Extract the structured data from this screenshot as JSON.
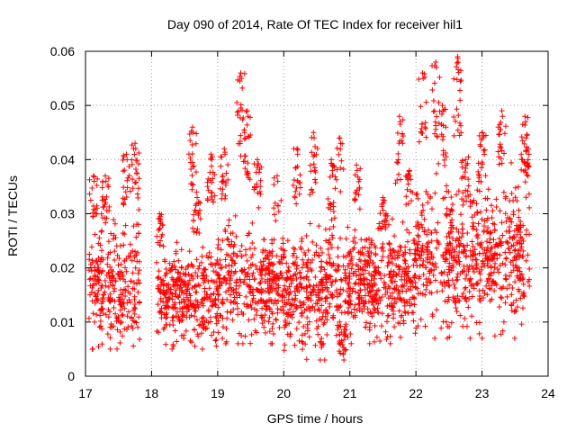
{
  "chart_data": {
    "type": "scatter",
    "title": "Day 090 of 2014, Rate Of TEC Index for receiver hil1",
    "xlabel": "GPS time / hours",
    "ylabel": "ROTI / TECUs",
    "xlim": [
      17,
      24
    ],
    "ylim": [
      0,
      0.06
    ],
    "xticks": [
      "17",
      "18",
      "19",
      "20",
      "21",
      "22",
      "23",
      "24"
    ],
    "yticks": [
      "0",
      "0.01",
      "0.02",
      "0.03",
      "0.04",
      "0.05",
      "0.06"
    ],
    "grid": true,
    "marker": "+",
    "color": "#ff0000",
    "series": [
      {
        "name": "hil1",
        "segments": [
          {
            "x_start": 17.05,
            "x_end": 17.82,
            "base": 0.017,
            "spread": 0.011,
            "min": 0.005,
            "max": 0.043,
            "peaks": [
              [
                17.12,
                0.037
              ],
              [
                17.3,
                0.037
              ],
              [
                17.62,
                0.041
              ],
              [
                17.75,
                0.043
              ]
            ]
          },
          {
            "x_start": 18.07,
            "x_end": 19.0,
            "base": 0.015,
            "spread": 0.008,
            "min": 0.005,
            "max": 0.046,
            "peaks": [
              [
                18.12,
                0.03
              ],
              [
                18.62,
                0.046
              ],
              [
                18.68,
                0.034
              ],
              [
                18.9,
                0.041
              ]
            ]
          },
          {
            "x_start": 19.0,
            "x_end": 20.0,
            "base": 0.017,
            "spread": 0.01,
            "min": 0.006,
            "max": 0.056,
            "peaks": [
              [
                19.1,
                0.042
              ],
              [
                19.35,
                0.056
              ],
              [
                19.45,
                0.049
              ],
              [
                19.6,
                0.04
              ],
              [
                19.9,
                0.037
              ]
            ]
          },
          {
            "x_start": 20.0,
            "x_end": 21.0,
            "base": 0.016,
            "spread": 0.011,
            "min": 0.003,
            "max": 0.045,
            "peaks": [
              [
                20.2,
                0.042
              ],
              [
                20.45,
                0.045
              ],
              [
                20.72,
                0.04
              ],
              [
                20.85,
                0.044
              ],
              [
                20.9,
                0.004
              ]
            ]
          },
          {
            "x_start": 21.0,
            "x_end": 22.0,
            "base": 0.017,
            "spread": 0.01,
            "min": 0.006,
            "max": 0.048,
            "peaks": [
              [
                21.1,
                0.039
              ],
              [
                21.5,
                0.033
              ],
              [
                21.75,
                0.048
              ],
              [
                21.9,
                0.038
              ]
            ]
          },
          {
            "x_start": 22.0,
            "x_end": 22.9,
            "base": 0.022,
            "spread": 0.013,
            "min": 0.007,
            "max": 0.059,
            "peaks": [
              [
                22.1,
                0.056
              ],
              [
                22.3,
                0.058
              ],
              [
                22.4,
                0.05
              ],
              [
                22.63,
                0.059
              ],
              [
                22.75,
                0.04
              ]
            ]
          },
          {
            "x_start": 22.9,
            "x_end": 23.72,
            "base": 0.022,
            "spread": 0.012,
            "min": 0.007,
            "max": 0.05,
            "peaks": [
              [
                23.0,
                0.045
              ],
              [
                23.3,
                0.049
              ],
              [
                23.65,
                0.048
              ],
              [
                23.7,
                0.042
              ]
            ]
          }
        ],
        "point_count": 3000
      }
    ]
  }
}
